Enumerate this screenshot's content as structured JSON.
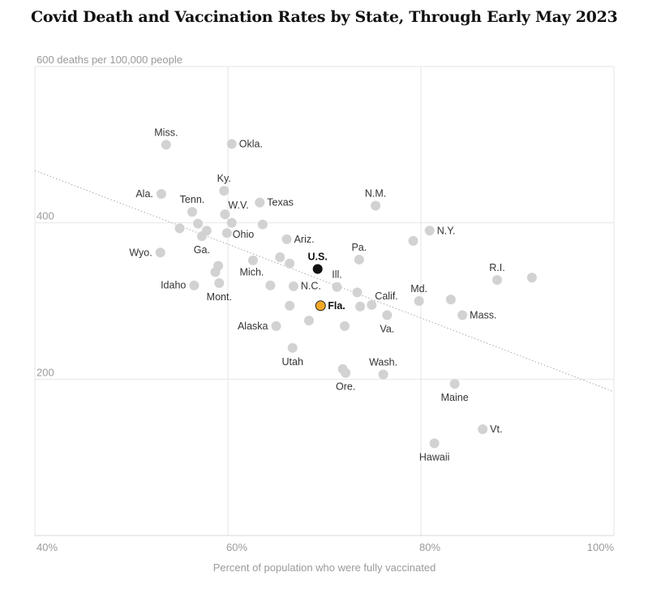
{
  "title": "Covid Death and Vaccination Rates by State, Through Early May 2023",
  "chart_data": {
    "type": "scatter",
    "title": "Covid Death and Vaccination Rates by State, Through Early May 2023",
    "xlabel": "Percent of population who were fully vaccinated",
    "ylabel": "600 deaths per 100,000 people",
    "xlim": [
      40,
      100
    ],
    "ylim": [
      0,
      600
    ],
    "x_ticks": [
      {
        "value": 40,
        "label": "40%"
      },
      {
        "value": 60,
        "label": "60%"
      },
      {
        "value": 80,
        "label": "80%"
      },
      {
        "value": 100,
        "label": "100%"
      }
    ],
    "y_ticks": [
      {
        "value": 600,
        "label": "600 deaths per 100,000 people"
      },
      {
        "value": 400,
        "label": "400"
      },
      {
        "value": 200,
        "label": "200"
      }
    ],
    "trend_line": {
      "style": "dotted",
      "from": {
        "x": 40,
        "y": 467
      },
      "to": {
        "x": 100,
        "y": 184
      }
    },
    "colors": {
      "point": "#d2d2d2",
      "us": "#111111",
      "florida": "#f3a926",
      "trend": "#aaaaaa",
      "grid": "#e6e6e6"
    },
    "points": [
      {
        "label": "Miss.",
        "x": 53.6,
        "y": 500,
        "lpos": "above"
      },
      {
        "label": "Okla.",
        "x": 60.4,
        "y": 501,
        "lpos": "right"
      },
      {
        "label": "Ky.",
        "x": 59.6,
        "y": 441,
        "lpos": "above"
      },
      {
        "label": "Ala.",
        "x": 53.1,
        "y": 437,
        "lpos": "left"
      },
      {
        "label": "Texas",
        "x": 63.3,
        "y": 426,
        "lpos": "right"
      },
      {
        "label": "N.M.",
        "x": 75.3,
        "y": 422,
        "lpos": "above"
      },
      {
        "label": "Tenn.",
        "x": 56.3,
        "y": 414,
        "lpos": "above"
      },
      {
        "label": "W.V.",
        "x": 59.7,
        "y": 411,
        "lpos": "aboveright"
      },
      {
        "label": "",
        "x": 56.9,
        "y": 399
      },
      {
        "label": "",
        "x": 60.4,
        "y": 400
      },
      {
        "label": "",
        "x": 63.6,
        "y": 398
      },
      {
        "label": "",
        "x": 55.0,
        "y": 393
      },
      {
        "label": "",
        "x": 57.8,
        "y": 390
      },
      {
        "label": "Ohio",
        "x": 59.9,
        "y": 387,
        "lpos": "right-low"
      },
      {
        "label": "N.Y.",
        "x": 80.9,
        "y": 390,
        "lpos": "right"
      },
      {
        "label": "Ga.",
        "x": 57.3,
        "y": 383,
        "lpos": "below"
      },
      {
        "label": "Ariz.",
        "x": 66.1,
        "y": 379,
        "lpos": "right"
      },
      {
        "label": "",
        "x": 79.2,
        "y": 377
      },
      {
        "label": "Wyo.",
        "x": 53.0,
        "y": 362,
        "lpos": "left"
      },
      {
        "label": "",
        "x": 65.4,
        "y": 356
      },
      {
        "label": "Pa.",
        "x": 73.6,
        "y": 353,
        "lpos": "above"
      },
      {
        "label": "",
        "x": 62.6,
        "y": 352
      },
      {
        "label": "",
        "x": 66.4,
        "y": 348
      },
      {
        "label": "",
        "x": 59.0,
        "y": 345
      },
      {
        "label": "U.S.",
        "x": 69.3,
        "y": 341,
        "lpos": "above",
        "highlight": "us"
      },
      {
        "label": "Mich.",
        "x": 58.7,
        "y": 337,
        "lpos": "mich"
      },
      {
        "label": "R.I.",
        "x": 87.9,
        "y": 327,
        "lpos": "above"
      },
      {
        "label": "",
        "x": 91.5,
        "y": 330
      },
      {
        "label": "Idaho",
        "x": 56.5,
        "y": 320,
        "lpos": "left"
      },
      {
        "label": "Mont.",
        "x": 59.1,
        "y": 323,
        "lpos": "below"
      },
      {
        "label": "",
        "x": 64.4,
        "y": 320
      },
      {
        "label": "N.C.",
        "x": 66.8,
        "y": 319,
        "lpos": "right"
      },
      {
        "label": "Ill.",
        "x": 71.3,
        "y": 318,
        "lpos": "above"
      },
      {
        "label": "",
        "x": 73.4,
        "y": 311
      },
      {
        "label": "Md.",
        "x": 79.8,
        "y": 300,
        "lpos": "above"
      },
      {
        "label": "",
        "x": 83.1,
        "y": 302
      },
      {
        "label": "Calif.",
        "x": 74.9,
        "y": 295,
        "lpos": "aboveright"
      },
      {
        "label": "",
        "x": 66.4,
        "y": 294
      },
      {
        "label": "",
        "x": 73.7,
        "y": 293
      },
      {
        "label": "Fla.",
        "x": 69.6,
        "y": 294,
        "lpos": "right",
        "highlight": "fl"
      },
      {
        "label": "Va.",
        "x": 76.5,
        "y": 282,
        "lpos": "below"
      },
      {
        "label": "Mass.",
        "x": 84.3,
        "y": 282,
        "lpos": "right"
      },
      {
        "label": "",
        "x": 68.4,
        "y": 275
      },
      {
        "label": "Alaska",
        "x": 65.0,
        "y": 268,
        "lpos": "left"
      },
      {
        "label": "",
        "x": 72.1,
        "y": 268
      },
      {
        "label": "Utah",
        "x": 66.7,
        "y": 240,
        "lpos": "below"
      },
      {
        "label": "Wash.",
        "x": 76.1,
        "y": 206,
        "lpos": "above"
      },
      {
        "label": "",
        "x": 71.9,
        "y": 213
      },
      {
        "label": "Ore.",
        "x": 72.2,
        "y": 208,
        "lpos": "below"
      },
      {
        "label": "Maine",
        "x": 83.5,
        "y": 194,
        "lpos": "below"
      },
      {
        "label": "Vt.",
        "x": 86.4,
        "y": 136,
        "lpos": "right"
      },
      {
        "label": "Hawaii",
        "x": 81.4,
        "y": 118,
        "lpos": "below"
      }
    ]
  }
}
